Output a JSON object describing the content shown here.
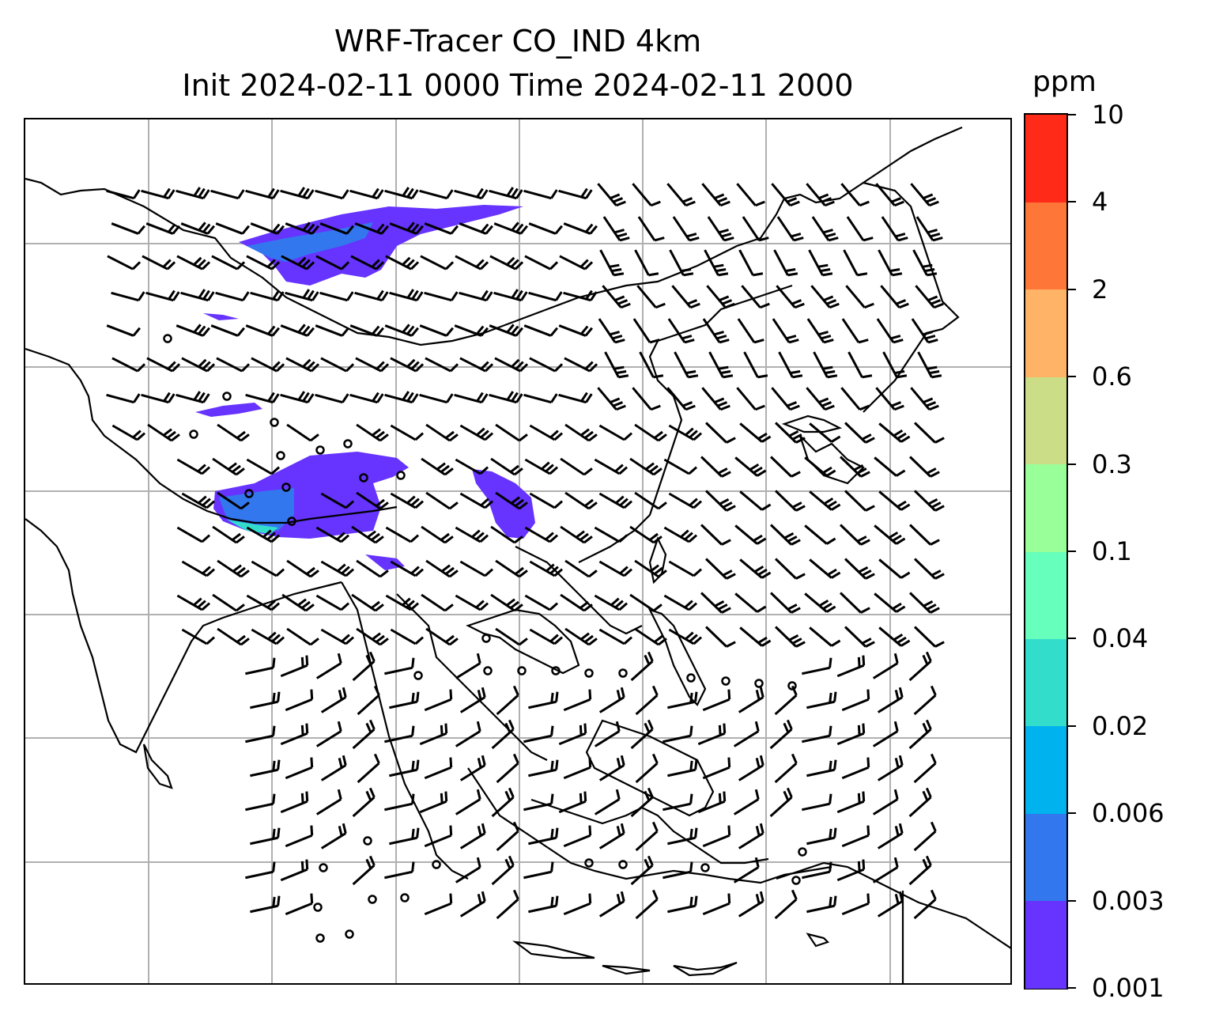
{
  "title": {
    "line1": "WRF-Tracer CO_IND 4km",
    "line2": "Init 2024-02-11 0000 Time 2024-02-11 2000"
  },
  "colorbar": {
    "unit": "ppm",
    "levels": [
      "10",
      "4",
      "2",
      "0.6",
      "0.3",
      "0.1",
      "0.04",
      "0.02",
      "0.006",
      "0.003",
      "0.001"
    ],
    "colors": [
      "#6633ff",
      "#3377ee",
      "#00b3ee",
      "#33ddcc",
      "#66ffbb",
      "#99ff99",
      "#ccdd88",
      "#ffb366",
      "#ff7738",
      "#ff2a18"
    ]
  },
  "map": {
    "gridline_color": "#b0b0b0",
    "coastline_color": "#000000",
    "wind_barb_color": "#000000",
    "tracer_color": "#6633ff"
  }
}
